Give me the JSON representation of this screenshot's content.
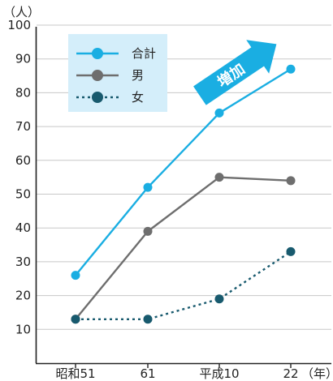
{
  "chart_data": {
    "type": "line",
    "title": "",
    "y_unit": "（人）",
    "x_unit": "（年）",
    "categories": [
      "昭和51",
      "61",
      "平成10",
      "22"
    ],
    "ylim": [
      0,
      100
    ],
    "yticks": [
      10,
      20,
      30,
      40,
      50,
      60,
      70,
      80,
      90,
      100
    ],
    "grid": "horizontal",
    "legend_placement": "top-left",
    "series": [
      {
        "name": "合計",
        "values": [
          26,
          52,
          74,
          87
        ],
        "color": "#1aaee2",
        "style": "solid"
      },
      {
        "name": "男",
        "values": [
          13,
          39,
          55,
          54
        ],
        "color": "#6e6e6e",
        "style": "solid"
      },
      {
        "name": "女",
        "values": [
          13,
          13,
          19,
          33
        ],
        "color": "#185a6e",
        "style": "dotted"
      }
    ],
    "annotations": [
      {
        "text": "増加",
        "shape": "arrow",
        "color": "#1aaee2"
      }
    ]
  }
}
